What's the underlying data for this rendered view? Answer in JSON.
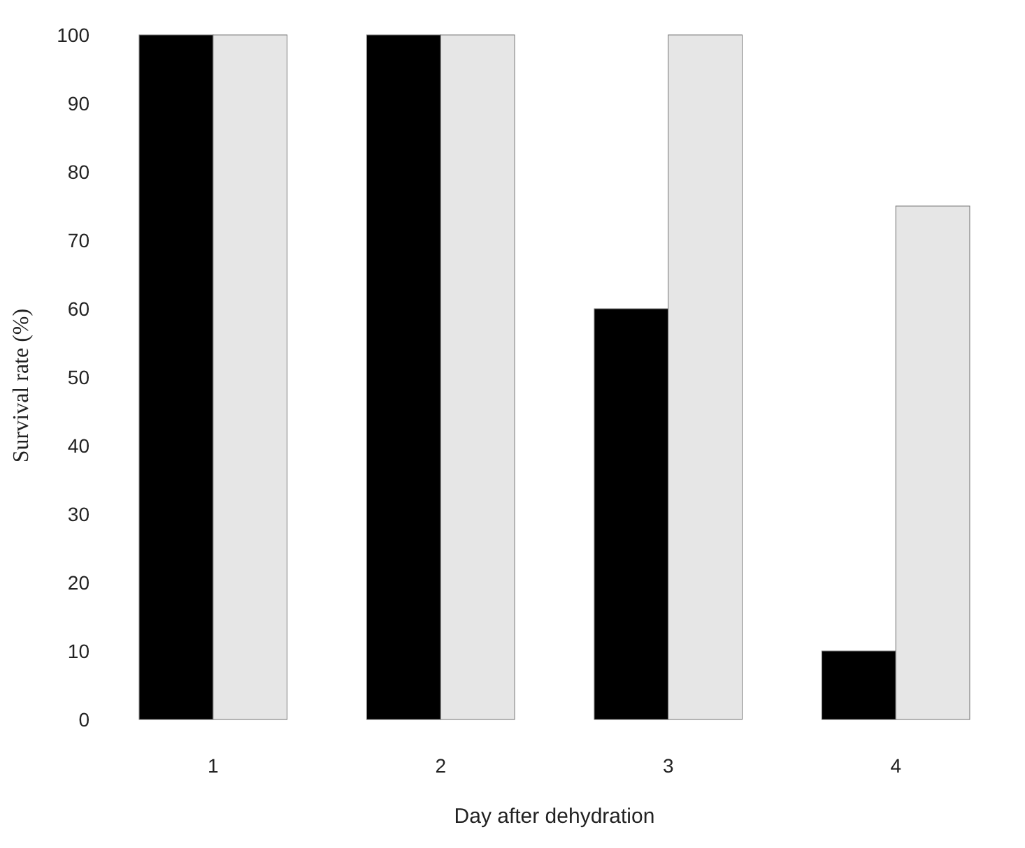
{
  "chart_data": {
    "type": "bar",
    "xlabel": "Day after dehydration",
    "ylabel": "Survival rate (%)",
    "categories": [
      "1",
      "2",
      "3",
      "4"
    ],
    "series": [
      {
        "color": "#000000",
        "values": [
          100,
          100,
          60,
          10
        ]
      },
      {
        "color": "#e6e6e6",
        "values": [
          100,
          100,
          100,
          75
        ]
      }
    ],
    "ylim": [
      0,
      100
    ],
    "yticks": [
      0,
      10,
      20,
      30,
      40,
      50,
      60,
      70,
      80,
      90,
      100
    ],
    "grid": false
  }
}
